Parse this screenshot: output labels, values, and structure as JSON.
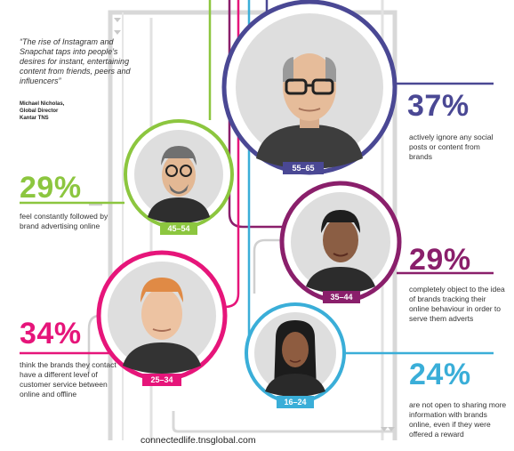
{
  "quote": "“The rise of Instagram and Snapchat taps into people’s desires for instant, entertaining content from friends, peers and influencers”",
  "attribution": {
    "name": "Michael Nicholas,",
    "role": "Global Director",
    "company": "Kantar TNS"
  },
  "stats": [
    {
      "age": "55–65",
      "percent": "37%",
      "text": "actively ignore any social posts or content from brands"
    },
    {
      "age": "45–54",
      "percent": "29%",
      "text": "feel constantly followed by brand advertising online"
    },
    {
      "age": "35–44",
      "percent": "29%",
      "text": "completely object to the idea of brands tracking their online behaviour in order to serve them adverts"
    },
    {
      "age": "25–34",
      "percent": "34%",
      "text": "think the brands they contact have a different level of customer service between online and offline"
    },
    {
      "age": "16–24",
      "percent": "24%",
      "text": "are not open to sharing more information with brands online, even if they were offered a reward"
    }
  ],
  "footer": "connectedlife.tnsglobal.com",
  "colors": {
    "55-65": "#4a4894",
    "45-54": "#8cc63f",
    "35-44": "#8a1f6b",
    "25-34": "#e6157a",
    "16-24": "#3aaed8"
  }
}
